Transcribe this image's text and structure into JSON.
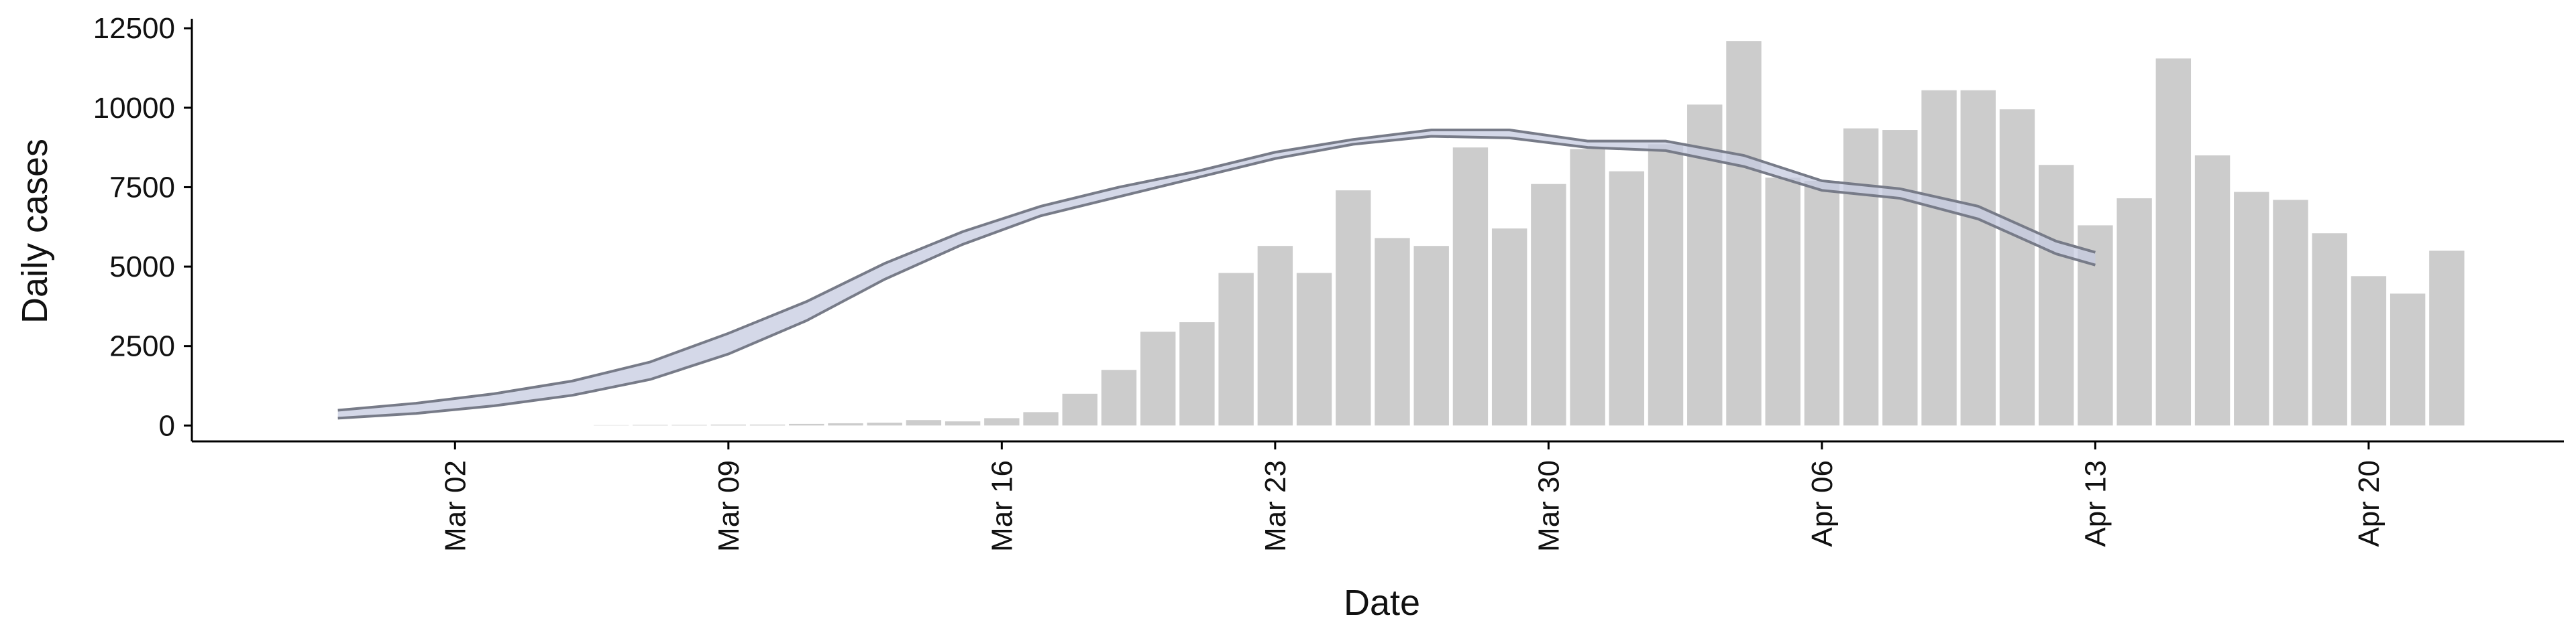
{
  "chart_data": {
    "type": "bar",
    "x_label": "Date",
    "y_label": "Daily cases",
    "xlim": [
      "Feb 25",
      "Apr 25"
    ],
    "xticks": [
      "Mar 02",
      "Mar 09",
      "Mar 16",
      "Mar 23",
      "Mar 30",
      "Apr 06",
      "Apr 13",
      "Apr 20"
    ],
    "ylim": [
      -500,
      12800
    ],
    "yticks": [
      0,
      2500,
      5000,
      7500,
      10000,
      12500
    ],
    "bars": {
      "color": "#cccccc",
      "x": [
        "Mar 06",
        "Mar 07",
        "Mar 08",
        "Mar 09",
        "Mar 10",
        "Mar 11",
        "Mar 12",
        "Mar 13",
        "Mar 14",
        "Mar 15",
        "Mar 16",
        "Mar 17",
        "Mar 18",
        "Mar 19",
        "Mar 20",
        "Mar 21",
        "Mar 22",
        "Mar 23",
        "Mar 24",
        "Mar 25",
        "Mar 26",
        "Mar 27",
        "Mar 28",
        "Mar 29",
        "Mar 30",
        "Mar 31",
        "Apr 01",
        "Apr 02",
        "Apr 03",
        "Apr 04",
        "Apr 05",
        "Apr 06",
        "Apr 07",
        "Apr 08",
        "Apr 09",
        "Apr 10",
        "Apr 11",
        "Apr 12",
        "Apr 13",
        "Apr 14",
        "Apr 15",
        "Apr 16",
        "Apr 17",
        "Apr 18",
        "Apr 19",
        "Apr 20",
        "Apr 21",
        "Apr 22"
      ],
      "values": [
        10,
        20,
        20,
        30,
        30,
        50,
        70,
        90,
        170,
        130,
        230,
        420,
        1000,
        1750,
        2950,
        3250,
        4800,
        5650,
        4800,
        7400,
        5900,
        5650,
        8750,
        6200,
        7600,
        8700,
        8000,
        8850,
        10100,
        12100,
        7800,
        7700,
        9350,
        9300,
        10550,
        10550,
        9950,
        8200,
        6300,
        7150,
        11550,
        8500,
        7350,
        7100,
        6050,
        4700,
        4150,
        5500
      ]
    },
    "band": {
      "line_color": "#777b88",
      "fill_color": "#c5cbe0",
      "x": [
        "Feb 28",
        "Mar 01",
        "Mar 03",
        "Mar 05",
        "Mar 07",
        "Mar 09",
        "Mar 11",
        "Mar 13",
        "Mar 15",
        "Mar 17",
        "Mar 19",
        "Mar 21",
        "Mar 23",
        "Mar 25",
        "Mar 27",
        "Mar 29",
        "Mar 31",
        "Apr 02",
        "Apr 04",
        "Apr 06",
        "Apr 08",
        "Apr 10",
        "Apr 12",
        "Apr 13"
      ],
      "upper": [
        480,
        700,
        1000,
        1400,
        2000,
        2900,
        3900,
        5100,
        6100,
        6900,
        7500,
        8000,
        8600,
        9000,
        9300,
        9300,
        8950,
        8950,
        8500,
        7700,
        7450,
        6900,
        5800,
        5450
      ],
      "lower": [
        230,
        380,
        620,
        950,
        1450,
        2250,
        3300,
        4600,
        5700,
        6600,
        7200,
        7800,
        8400,
        8850,
        9100,
        9050,
        8750,
        8650,
        8150,
        7400,
        7150,
        6500,
        5400,
        5050
      ]
    }
  }
}
